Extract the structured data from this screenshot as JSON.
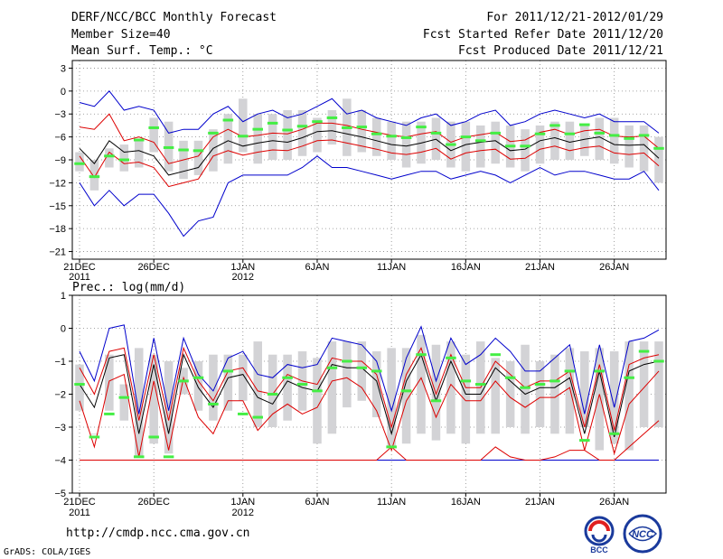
{
  "header": {
    "title": "DERF/NCC/BCC Monthly Forecast",
    "member_size": "Member Size=40",
    "variable": "Mean Surf. Temp.: °C",
    "period": "For 2011/12/21-2012/01/29",
    "started": "Fcst Started Refer Date 2011/12/20",
    "produced": "Fcst Produced Date 2011/12/21"
  },
  "footer": {
    "url": "http://cmdp.ncc.cma.gov.cn",
    "grads": "GrADS: COLA/IGES",
    "logo_bcc": "BCC",
    "logo_ncc": "NCC"
  },
  "colors": {
    "envelope": "#0000cc",
    "spread": "#dd0000",
    "mean": "#000000",
    "box": "#d3d3d6",
    "median": "#44ee44"
  },
  "chart_data": [
    {
      "type": "box",
      "title": "Mean Surf. Temp.: °C",
      "ylim": [
        -22,
        4
      ],
      "yticks": [
        3,
        0,
        -3,
        -6,
        -9,
        -12,
        -15,
        -18,
        -21
      ],
      "days": 40,
      "x_ticks": [
        {
          "day": 0,
          "label": "21DEC",
          "sub": "2011"
        },
        {
          "day": 5,
          "label": "26DEC",
          "sub": ""
        },
        {
          "day": 11,
          "label": "1JAN",
          "sub": "2012"
        },
        {
          "day": 16,
          "label": "6JAN",
          "sub": ""
        },
        {
          "day": 21,
          "label": "11JAN",
          "sub": ""
        },
        {
          "day": 26,
          "label": "16JAN",
          "sub": ""
        },
        {
          "day": 31,
          "label": "21JAN",
          "sub": ""
        },
        {
          "day": 36,
          "label": "26JAN",
          "sub": ""
        }
      ],
      "box_low": [
        -10.5,
        -13,
        -10,
        -10.5,
        -10,
        -8,
        -10.5,
        -11.5,
        -11,
        -10.5,
        -9.5,
        -8,
        -9.5,
        -9,
        -9,
        -8.5,
        -8,
        -7,
        -8.5,
        -8,
        -8.5,
        -9,
        -10,
        -9.5,
        -9,
        -10,
        -10.5,
        -10,
        -9.5,
        -10,
        -10.5,
        -9.5,
        -9,
        -9,
        -8.5,
        -9,
        -9.5,
        -10,
        -10.5,
        -12
      ],
      "box_high": [
        -8,
        -9,
        -7.5,
        -7,
        -6.5,
        -3.5,
        -4,
        -6.5,
        -6.5,
        -5,
        -3,
        -1,
        -3,
        -3,
        -2.5,
        -2.5,
        -3.5,
        -2.5,
        -1,
        -2.5,
        -3.5,
        -4,
        -4,
        -4,
        -3.5,
        -4,
        -4,
        -4.5,
        -4,
        -4.5,
        -5,
        -4.5,
        -4,
        -4,
        -4.5,
        -3.5,
        -3.5,
        -4.5,
        -4.5,
        -6
      ],
      "median": [
        -9.5,
        -11.2,
        -8.5,
        -9.0,
        -6.4,
        -4.8,
        -7.4,
        -7.7,
        -7.8,
        -5.5,
        -3.8,
        -5.9,
        -5.0,
        -4.2,
        -5.1,
        -4.6,
        -4.0,
        -3.5,
        -4.8,
        -4.7,
        -5.6,
        -5.9,
        -6.1,
        -4.7,
        -5.5,
        -7.0,
        -6.0,
        -6.5,
        -5.5,
        -7.2,
        -7.2,
        -5.6,
        -4.5,
        -5.6,
        -4.4,
        -5.5,
        -5.8,
        -6.2,
        -5.8,
        -7.5
      ],
      "mean": [
        -7.5,
        -9.5,
        -6.5,
        -8,
        -7.8,
        -8.5,
        -11,
        -10.5,
        -10,
        -7.5,
        -6.5,
        -7.2,
        -6.8,
        -6.5,
        -6.7,
        -6.1,
        -5.3,
        -5.2,
        -5.6,
        -6,
        -6.5,
        -7,
        -7.2,
        -6.8,
        -6.3,
        -7.8,
        -7,
        -6.7,
        -6.5,
        -7.8,
        -7.6,
        -6.5,
        -6.1,
        -6.7,
        -6.3,
        -6,
        -7,
        -7.1,
        -7,
        -8.8
      ],
      "spread_high": [
        -4.7,
        -5,
        -3,
        -6.5,
        -6,
        -6.7,
        -9.5,
        -9,
        -8.5,
        -6,
        -5,
        -6,
        -5.8,
        -5.5,
        -5.6,
        -5,
        -4.2,
        -4.2,
        -4.5,
        -5,
        -5.4,
        -5.8,
        -6,
        -5.6,
        -5.3,
        -6.7,
        -6,
        -5.7,
        -5.4,
        -6.6,
        -6.4,
        -5.4,
        -5,
        -5.7,
        -5.2,
        -5,
        -5.9,
        -6,
        -5.9,
        -7.5
      ],
      "spread_low": [
        -8.5,
        -11.3,
        -8,
        -9.5,
        -9.3,
        -10,
        -12.5,
        -12,
        -11.5,
        -8.5,
        -7.8,
        -8.4,
        -8,
        -7.7,
        -7.8,
        -7.2,
        -6.5,
        -6.4,
        -6.8,
        -7.2,
        -7.6,
        -8.1,
        -8.3,
        -8,
        -7.5,
        -8.9,
        -8.1,
        -7.8,
        -7.6,
        -8.9,
        -8.8,
        -7.6,
        -7.2,
        -7.8,
        -7.4,
        -7.2,
        -8.1,
        -8.3,
        -8.1,
        -9.8
      ],
      "env_high": [
        -1.5,
        -2,
        0,
        -2.5,
        -2,
        -2.5,
        -5.5,
        -5,
        -5,
        -3,
        -2,
        -4,
        -3,
        -2.5,
        -3.5,
        -3,
        -2,
        -1,
        -3,
        -2.5,
        -3.5,
        -4,
        -4.5,
        -3.5,
        -3,
        -4.5,
        -4,
        -3,
        -2.5,
        -4.5,
        -4,
        -3,
        -2.5,
        -3,
        -3.5,
        -3,
        -4,
        -4,
        -4,
        -5.5
      ],
      "env_low": [
        -12,
        -15,
        -13,
        -15,
        -13.5,
        -13.5,
        -16,
        -19,
        -17,
        -16.5,
        -12,
        -11,
        -11,
        -11,
        -11,
        -10,
        -8.5,
        -10,
        -10,
        -10.5,
        -11,
        -11.5,
        -11,
        -10.5,
        -10.5,
        -11.5,
        -11,
        -10.5,
        -11,
        -12,
        -11,
        -10,
        -11,
        -10.5,
        -10.5,
        -11,
        -11.5,
        -11.5,
        -10.5,
        -13
      ]
    },
    {
      "type": "box",
      "title": "Prec.: log(mm/d)",
      "ylim": [
        -5,
        1
      ],
      "yticks": [
        1,
        0,
        -1,
        -2,
        -3,
        -4,
        -5
      ],
      "days": 40,
      "x_ticks": [
        {
          "day": 0,
          "label": "21DEC",
          "sub": "2011"
        },
        {
          "day": 5,
          "label": "26DEC",
          "sub": ""
        },
        {
          "day": 11,
          "label": "1JAN",
          "sub": "2012"
        },
        {
          "day": 16,
          "label": "6JAN",
          "sub": ""
        },
        {
          "day": 21,
          "label": "11JAN",
          "sub": ""
        },
        {
          "day": 26,
          "label": "16JAN",
          "sub": ""
        },
        {
          "day": 31,
          "label": "21JAN",
          "sub": ""
        },
        {
          "day": 36,
          "label": "26JAN",
          "sub": ""
        }
      ],
      "box_low": [
        -2.5,
        -3.2,
        -2.5,
        -2.8,
        -3.9,
        -3.5,
        -3.8,
        -2,
        -2.5,
        -2.8,
        -2.5,
        -2.2,
        -3,
        -3,
        -2.8,
        -2.5,
        -3.5,
        -3.2,
        -2.4,
        -2.2,
        -2.7,
        -3.6,
        -3.5,
        -3.2,
        -3.4,
        -3.2,
        -3.5,
        -3.2,
        -3.2,
        -3,
        -3.2,
        -3,
        -3.2,
        -3.2,
        -3,
        -3.7,
        -3.5,
        -3.7,
        -3,
        -3
      ],
      "box_high": [
        -1.1,
        -3.2,
        -0.8,
        -1.7,
        -0.6,
        -0.8,
        -1,
        -1.2,
        -1,
        -0.8,
        -0.8,
        -0.8,
        -0.4,
        -0.8,
        -0.8,
        -0.7,
        -0.9,
        -0.4,
        -0.4,
        -0.4,
        -0.7,
        -0.6,
        -0.6,
        -0.2,
        -0.5,
        -0.4,
        -0.8,
        -0.4,
        -0.9,
        -1,
        -0.5,
        -1,
        -0.8,
        -0.6,
        -0.7,
        -0.6,
        -0.7,
        -0.4,
        -0.4,
        -0.4
      ],
      "median": [
        -1.7,
        -3.3,
        -2.6,
        -2.1,
        -3.9,
        -3.3,
        -3.9,
        -1.6,
        -1.5,
        -2.3,
        -1.3,
        -2.6,
        -2.7,
        -2.0,
        -1.5,
        -1.7,
        -1.9,
        -1.2,
        -1.0,
        -1.2,
        -1.3,
        -3.6,
        -1.9,
        -0.8,
        -2.2,
        -0.9,
        -1.6,
        -1.7,
        -0.8,
        -1.5,
        -1.8,
        -1.7,
        -1.6,
        -1.3,
        -3.4,
        -1.3,
        -3.2,
        -1.5,
        -0.7,
        -1.0
      ],
      "mean": [
        -1.7,
        -2.4,
        -0.9,
        -0.8,
        -3.2,
        -1.1,
        -3.2,
        -0.8,
        -1.8,
        -2.4,
        -1.5,
        -1.4,
        -2.1,
        -2.3,
        -1.6,
        -1.8,
        -1.9,
        -1.1,
        -1.2,
        -1.2,
        -1.6,
        -3.2,
        -1.6,
        -0.8,
        -2.2,
        -1,
        -2.0,
        -2.0,
        -1.2,
        -1.6,
        -2.0,
        -1.8,
        -1.8,
        -1.5,
        -3.2,
        -1.3,
        -3.3,
        -1.3,
        -1.1,
        -1.0
      ],
      "spread_high": [
        -1.2,
        -2.0,
        -0.7,
        -0.6,
        -2.8,
        -0.8,
        -2.8,
        -0.6,
        -1.6,
        -2.2,
        -1.3,
        -1.2,
        -1.9,
        -2.0,
        -1.4,
        -1.6,
        -1.7,
        -0.9,
        -1.0,
        -1.0,
        -1.4,
        -3.0,
        -1.4,
        -0.6,
        -2.0,
        -0.8,
        -1.8,
        -1.8,
        -1.0,
        -1.4,
        -1.8,
        -1.6,
        -1.6,
        -1.3,
        -3.0,
        -1.1,
        -3.1,
        -1.1,
        -0.9,
        -0.8
      ],
      "spread_low": [
        -2.2,
        -3.6,
        -1.6,
        -1.4,
        -3.9,
        -1.6,
        -3.7,
        -1.5,
        -2.7,
        -3.2,
        -2.2,
        -2.2,
        -3.1,
        -2.6,
        -2.3,
        -2.6,
        -2.4,
        -1.6,
        -1.5,
        -1.8,
        -2.5,
        -3.7,
        -2.2,
        -1.5,
        -2.7,
        -1.7,
        -2.2,
        -2.2,
        -1.6,
        -2.1,
        -2.4,
        -2.1,
        -2.1,
        -1.8,
        -3.7,
        -2.0,
        -3.8,
        -2.3,
        -1.8,
        -1.3
      ],
      "env_high": [
        -0.7,
        -1.6,
        0,
        0.1,
        -2.6,
        -0.3,
        -2.5,
        -0.3,
        -1.4,
        -1.9,
        -0.9,
        -0.7,
        -1.4,
        -1.5,
        -1.1,
        -1.2,
        -1.1,
        -0.3,
        -0.4,
        -0.5,
        -1.0,
        -2.5,
        -0.9,
        0.05,
        -1.6,
        -0.3,
        -1.1,
        -0.8,
        -0.3,
        -0.7,
        -1.3,
        -1.3,
        -0.9,
        -0.5,
        -2.6,
        -0.5,
        -2.4,
        -0.4,
        -0.3,
        -0.05
      ],
      "env_low": [
        -4,
        -4,
        -4,
        -4,
        -4,
        -4,
        -4,
        -4,
        -4,
        -4,
        -4,
        -4,
        -4,
        -4,
        -4,
        -4,
        -4,
        -4,
        -4,
        -4,
        -4,
        -4,
        -4,
        -4,
        -4,
        -4,
        -4,
        -4,
        -4,
        -4,
        -4,
        -4,
        -4,
        -4,
        -4,
        -4,
        -4,
        -4,
        -4,
        -4
      ],
      "extra_low": [
        -4,
        -4,
        -4,
        -4,
        -4,
        -4,
        -4,
        -4,
        -4,
        -4,
        -4,
        -4,
        -4,
        -4,
        -4,
        -4,
        -4,
        -4,
        -4,
        -4,
        -4,
        -3.6,
        -4,
        -4,
        -4,
        -4,
        -4,
        -4,
        -3.6,
        -3.9,
        -4,
        -4,
        -3.9,
        -3.7,
        -3.7,
        -4,
        -4,
        -3.6,
        -3.2,
        -2.8
      ]
    }
  ]
}
